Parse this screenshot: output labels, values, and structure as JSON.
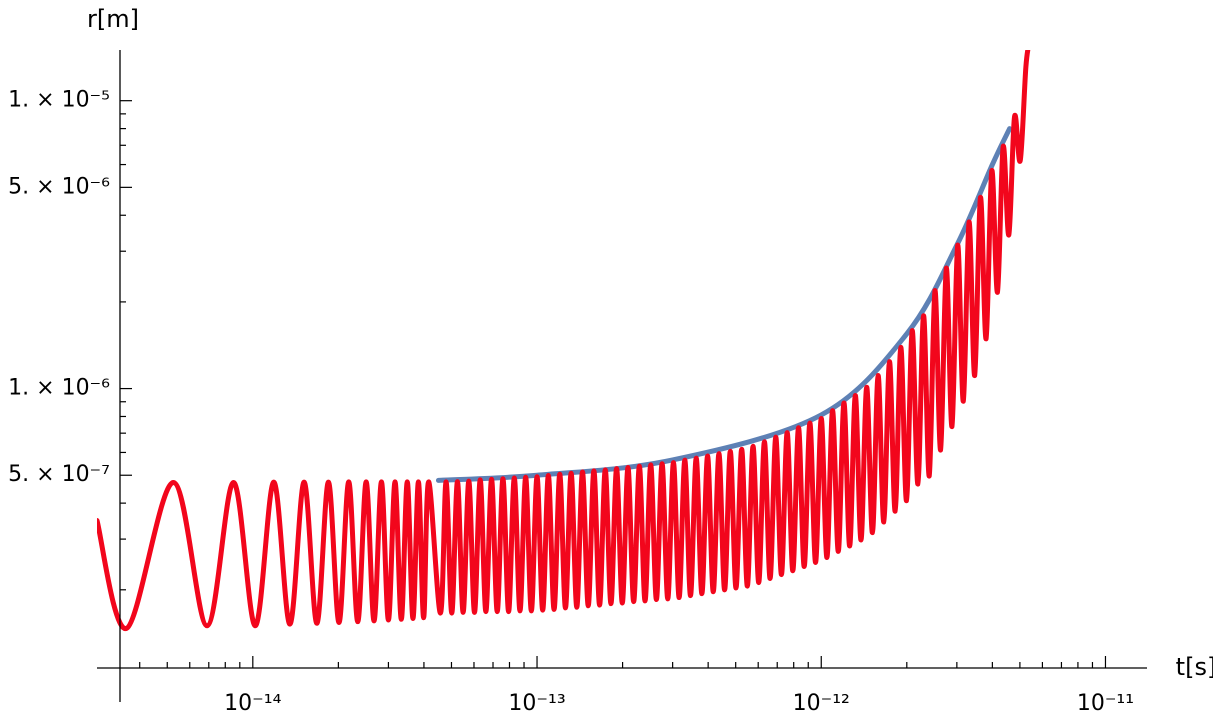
{
  "chart_data": {
    "type": "line",
    "x_label": "t[s]",
    "y_label": "r[m]",
    "log_x": true,
    "log_y": true,
    "xlim": [
      2.83e-15,
      1.4e-11
    ],
    "ylim": [
      1.07e-07,
      1.5e-05
    ],
    "xticks": [
      {
        "value": 1e-14,
        "label": "10⁻¹⁴"
      },
      {
        "value": 1e-13,
        "label": "10⁻¹³"
      },
      {
        "value": 1e-12,
        "label": "10⁻¹²"
      },
      {
        "value": 1e-11,
        "label": "10⁻¹¹"
      }
    ],
    "yticks": [
      {
        "value": 5e-07,
        "label": "5. × 10⁻⁷"
      },
      {
        "value": 1e-06,
        "label": "1. × 10⁻⁶"
      },
      {
        "value": 5e-06,
        "label": "5. × 10⁻⁶"
      },
      {
        "value": 1e-05,
        "label": "1. × 10⁻⁵"
      }
    ],
    "xminorticks": [
      4e-15,
      5e-15,
      6e-15,
      7e-15,
      8e-15,
      9e-15,
      2e-14,
      3e-14,
      4e-14,
      5e-14,
      6e-14,
      7e-14,
      8e-14,
      9e-14,
      2e-13,
      3e-13,
      4e-13,
      5e-13,
      6e-13,
      7e-13,
      8e-13,
      9e-13,
      2e-12,
      3e-12,
      4e-12,
      5e-12,
      6e-12,
      7e-12,
      8e-12,
      9e-12
    ],
    "yminorticks": [
      2e-07,
      3e-07,
      4e-07,
      6e-07,
      7e-07,
      8e-07,
      9e-07,
      2e-06,
      3e-06,
      4e-06,
      6e-06,
      7e-06,
      8e-06,
      9e-06
    ],
    "series": [
      {
        "color": "#5e81b5",
        "x": [
          4.5e-14,
          1e-13,
          3e-13,
          1e-12,
          2e-12,
          3e-12,
          4e-12,
          4.6e-12
        ],
        "values": [
          4.8e-07,
          5e-07,
          5.65e-07,
          8.1e-07,
          1.55e-06,
          3.15e-06,
          6e-06,
          8e-06
        ]
      },
      {
        "color": "#f2061c",
        "x": [
          2.83e-15,
          3.6e-15,
          5.25e-15,
          6.9e-15,
          8.55e-15,
          1.02e-14,
          1.185e-14,
          1.35e-14,
          1.515e-14,
          1.68e-14,
          1.845e-14,
          2.01e-14,
          2.175e-14,
          2.34e-14,
          2.505e-14,
          2.67e-14,
          2.835e-14,
          3e-14,
          3.165e-14,
          3.33e-14,
          3.495e-14,
          3.66e-14,
          3.825e-14,
          3.99e-14,
          4.155e-14,
          4.571e-14,
          4.786e-14,
          5.012e-14,
          5.248e-14,
          5.495e-14,
          5.754e-14,
          6.026e-14,
          6.31e-14,
          6.607e-14,
          6.918e-14,
          7.244e-14,
          7.586e-14,
          7.943e-14,
          8.318e-14,
          8.71e-14,
          9.12e-14,
          9.55e-14,
          1e-13,
          1.047e-13,
          1.096e-13,
          1.148e-13,
          1.202e-13,
          1.259e-13,
          1.318e-13,
          1.38e-13,
          1.445e-13,
          1.514e-13,
          1.585e-13,
          1.66e-13,
          1.738e-13,
          1.82e-13,
          1.905e-13,
          1.995e-13,
          2.089e-13,
          2.188e-13,
          2.291e-13,
          2.399e-13,
          2.512e-13,
          2.63e-13,
          2.754e-13,
          2.884e-13,
          3.02e-13,
          3.162e-13,
          3.311e-13,
          3.467e-13,
          3.631e-13,
          3.802e-13,
          3.981e-13,
          4.169e-13,
          4.365e-13,
          4.571e-13,
          4.786e-13,
          5.012e-13,
          5.248e-13,
          5.495e-13,
          5.754e-13,
          6.026e-13,
          6.31e-13,
          6.607e-13,
          6.918e-13,
          7.244e-13,
          7.586e-13,
          7.943e-13,
          8.318e-13,
          8.71e-13,
          9.12e-13,
          9.55e-13,
          1e-12,
          1.047e-12,
          1.096e-12,
          1.148e-12,
          1.202e-12,
          1.259e-12,
          1.318e-12,
          1.38e-12,
          1.445e-12,
          1.514e-12,
          1.585e-12,
          1.66e-12,
          1.738e-12,
          1.82e-12,
          1.905e-12,
          1.995e-12,
          2.089e-12,
          2.188e-12,
          2.291e-12,
          2.399e-12,
          2.512e-12,
          2.63e-12,
          2.754e-12,
          2.884e-12,
          3.02e-12,
          3.162e-12,
          3.311e-12,
          3.467e-12,
          3.631e-12,
          3.802e-12,
          3.981e-12,
          4.169e-12,
          4.365e-12,
          4.571e-12,
          4.786e-12,
          5.012e-12,
          5.248e-12,
          5.4e-12
        ],
        "values": [
          3.48e-07,
          1.47e-07,
          4.72e-07,
          1.5e-07,
          4.72e-07,
          1.5e-07,
          4.73e-07,
          1.52e-07,
          4.73e-07,
          1.53e-07,
          4.73e-07,
          1.54e-07,
          4.74e-07,
          1.55e-07,
          4.74e-07,
          1.56e-07,
          4.74e-07,
          1.57e-07,
          4.74e-07,
          1.58e-07,
          4.74e-07,
          1.59e-07,
          4.74e-07,
          1.6e-07,
          4.74e-07,
          1.66e-07,
          4.74e-07,
          1.66e-07,
          4.75e-07,
          1.67e-07,
          4.77e-07,
          1.67e-07,
          4.82e-07,
          1.68e-07,
          4.84e-07,
          1.68e-07,
          4.86e-07,
          1.68e-07,
          4.89e-07,
          1.69e-07,
          4.92e-07,
          1.69e-07,
          4.94e-07,
          1.7e-07,
          4.99e-07,
          1.71e-07,
          5.04e-07,
          1.73e-07,
          5.08e-07,
          1.74e-07,
          5.13e-07,
          1.76e-07,
          5.18e-07,
          1.77e-07,
          5.22e-07,
          1.79e-07,
          5.27e-07,
          1.8e-07,
          5.32e-07,
          1.82e-07,
          5.38e-07,
          1.83e-07,
          5.43e-07,
          1.85e-07,
          5.48e-07,
          1.86e-07,
          5.53e-07,
          1.88e-07,
          5.64e-07,
          1.91e-07,
          5.73e-07,
          1.94e-07,
          5.83e-07,
          1.97e-07,
          5.94e-07,
          2e-07,
          6.05e-07,
          2.03e-07,
          6.15e-07,
          2.06e-07,
          6.3e-07,
          2.12e-07,
          6.53e-07,
          2.19e-07,
          6.78e-07,
          2.26e-07,
          7.03e-07,
          2.33e-07,
          7.31e-07,
          2.41e-07,
          7.59e-07,
          2.49e-07,
          7.87e-07,
          2.59e-07,
          8.38e-07,
          2.72e-07,
          8.91e-07,
          2.84e-07,
          9.46e-07,
          2.98e-07,
          1.01e-06,
          3.16e-07,
          1.11e-06,
          3.44e-07,
          1.24e-06,
          3.75e-07,
          1.39e-06,
          4.08e-07,
          1.59e-06,
          4.66e-07,
          1.79e-06,
          4.97e-07,
          2.19e-06,
          6.12e-07,
          2.62e-06,
          7.38e-07,
          3.15e-06,
          9.04e-07,
          3.79e-06,
          1.11e-06,
          4.61e-06,
          1.49e-06,
          5.71e-06,
          2.16e-06,
          6.92e-06,
          3.42e-06,
          8.79e-06,
          6.19e-06,
          1.31e-05,
          1.6e-05
        ]
      }
    ]
  }
}
